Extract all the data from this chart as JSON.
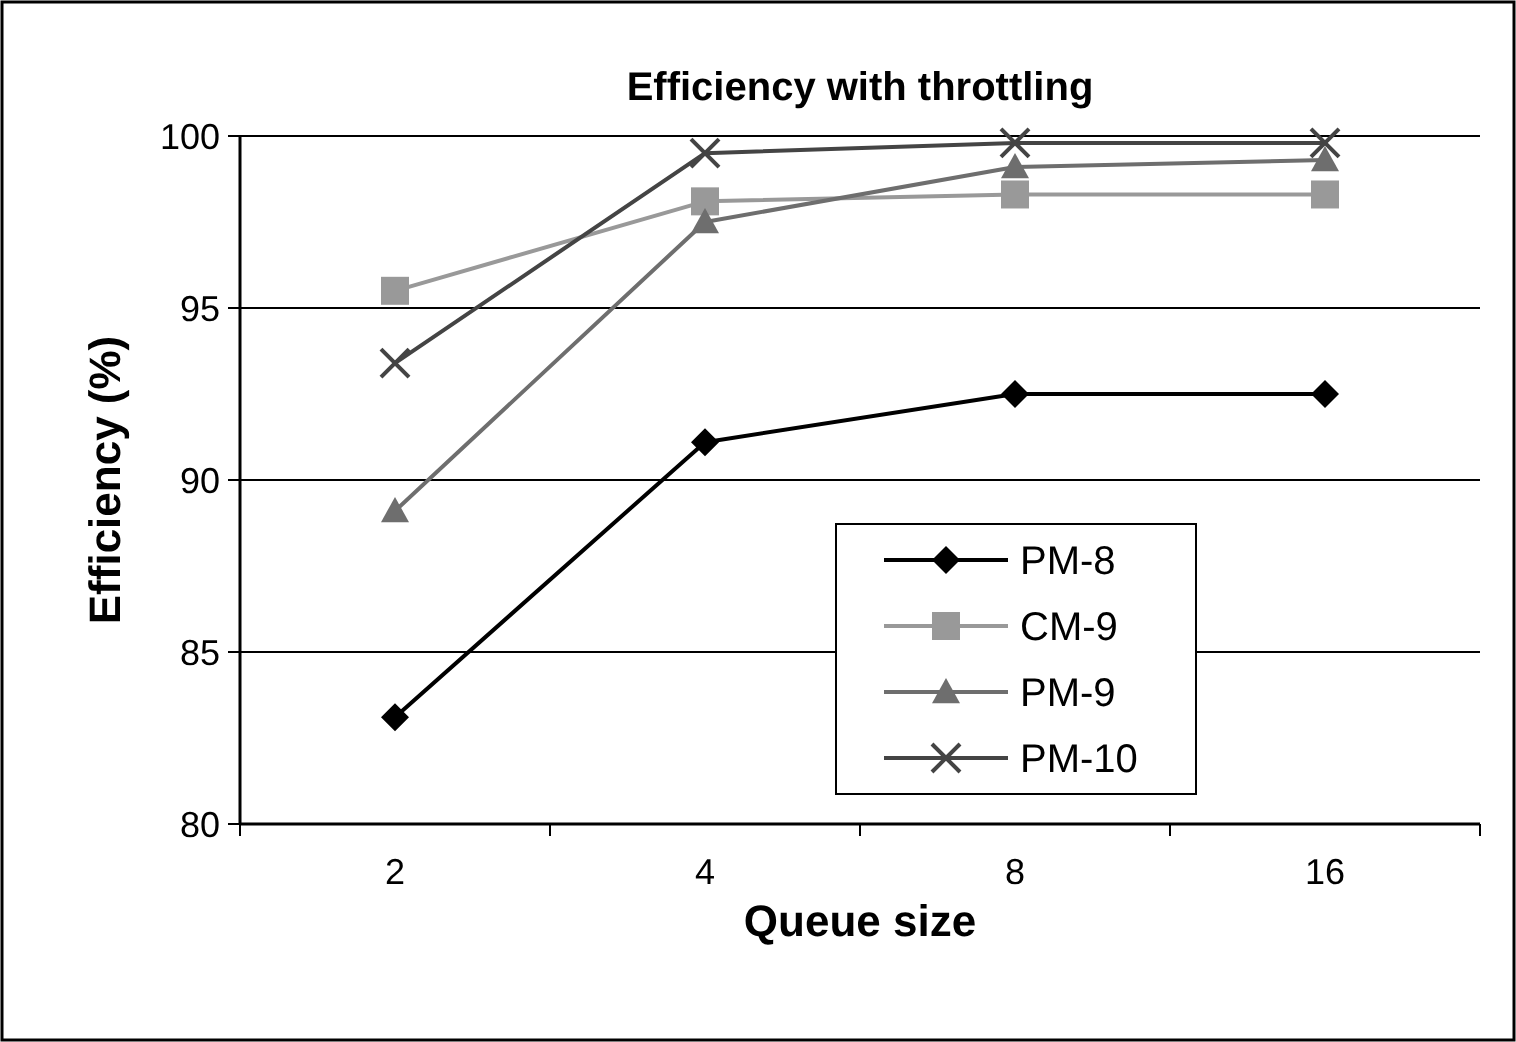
{
  "chart_data": {
    "type": "line",
    "title": "Efficiency with throttling",
    "xlabel": "Queue size",
    "ylabel": "Efficiency (%)",
    "categories": [
      "2",
      "4",
      "8",
      "16"
    ],
    "series": [
      {
        "name": "PM-8",
        "color": "#000000",
        "marker": "diamond",
        "values": [
          83.1,
          91.1,
          92.5,
          92.5
        ]
      },
      {
        "name": "CM-9",
        "color": "#999999",
        "marker": "square",
        "values": [
          95.5,
          98.1,
          98.3,
          98.3
        ]
      },
      {
        "name": "PM-9",
        "color": "#6e6e6e",
        "marker": "triangle",
        "values": [
          89.1,
          97.5,
          99.1,
          99.3
        ]
      },
      {
        "name": "PM-10",
        "color": "#444444",
        "marker": "cross",
        "values": [
          93.4,
          99.5,
          99.8,
          99.8
        ]
      }
    ],
    "ylim": [
      80,
      100
    ],
    "yticks": [
      80,
      85,
      90,
      95,
      100
    ],
    "grid": "y",
    "legend": "bottom right"
  }
}
